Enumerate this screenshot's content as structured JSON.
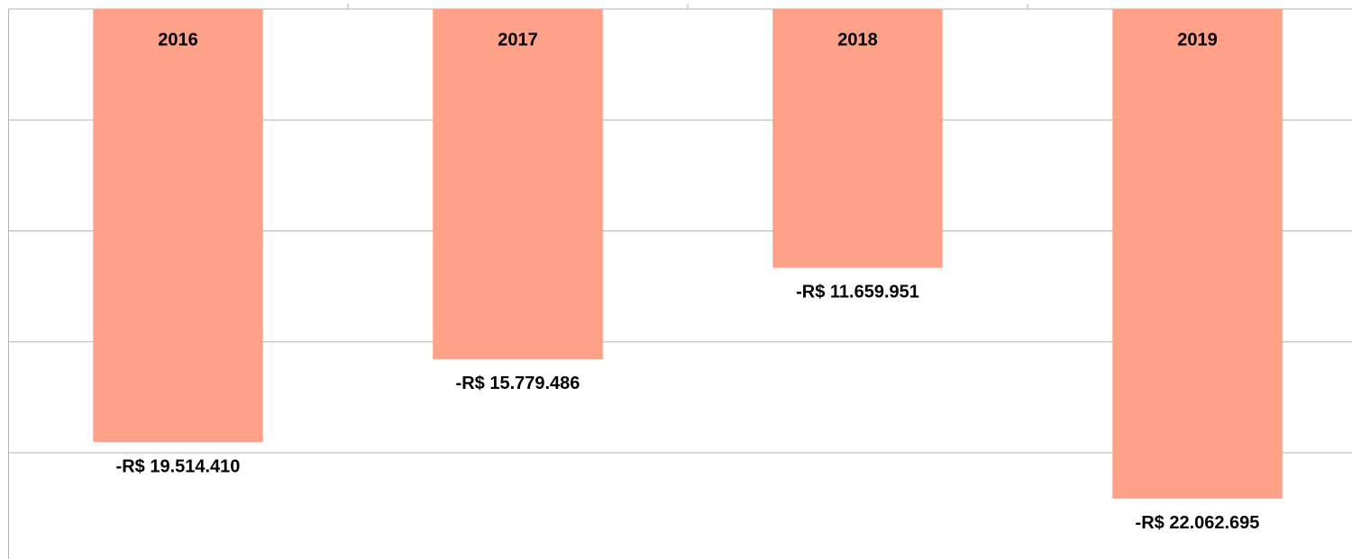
{
  "chart_data": {
    "type": "bar",
    "categories": [
      "2016",
      "2017",
      "2018",
      "2019"
    ],
    "values": [
      -19514410,
      -15779486,
      -11659951,
      -22062695
    ],
    "value_labels": [
      "-R$ 19.514.410",
      "-R$ 15.779.486",
      "-R$ 11.659.951",
      "-R$ 22.062.695"
    ],
    "color": "#ffa088",
    "ylim": [
      -25000000,
      0
    ],
    "yticks": [
      -20000000,
      -15000000,
      -10000000,
      -5000000,
      0
    ],
    "grid": true
  }
}
